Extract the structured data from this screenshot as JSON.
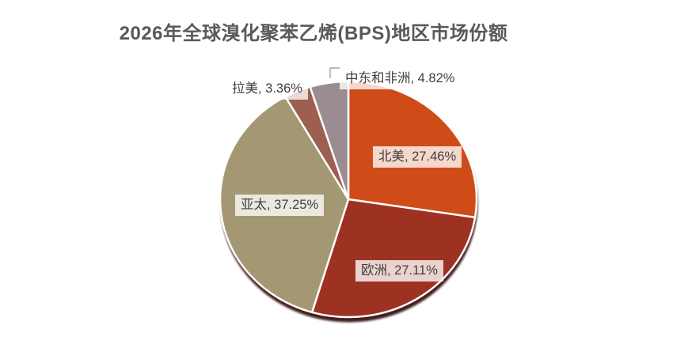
{
  "chart_data": {
    "type": "pie",
    "title": "2026年全球溴化聚苯乙烯(BPS)地区市场份额",
    "title_color": "#595959",
    "label_text_color": "#404040",
    "label_box_bg": "rgba(255,255,255,0.78)",
    "slice_border_color": "#FFFFFF",
    "shadow_color": "#350F07",
    "leader_line_color": "#A6A6A6",
    "direction": "clockwise",
    "start_angle_deg": 0,
    "legend_position": "none",
    "units": "%",
    "slices": [
      {
        "label": "北美",
        "value": 27.46,
        "color": "#CF4B18",
        "display": "北美, 27.46%"
      },
      {
        "label": "欧洲",
        "value": 27.11,
        "color": "#9E3222",
        "display": "欧洲, 27.11%"
      },
      {
        "label": "亚太",
        "value": 37.25,
        "color": "#A49872",
        "display": "亚太, 37.25%"
      },
      {
        "label": "拉美",
        "value": 3.36,
        "color": "#9C5F50",
        "display": "拉美, 3.36%"
      },
      {
        "label": "中东和非洲",
        "value": 4.82,
        "color": "#9A8C90",
        "display": "中东和非洲, 4.82%"
      }
    ]
  }
}
